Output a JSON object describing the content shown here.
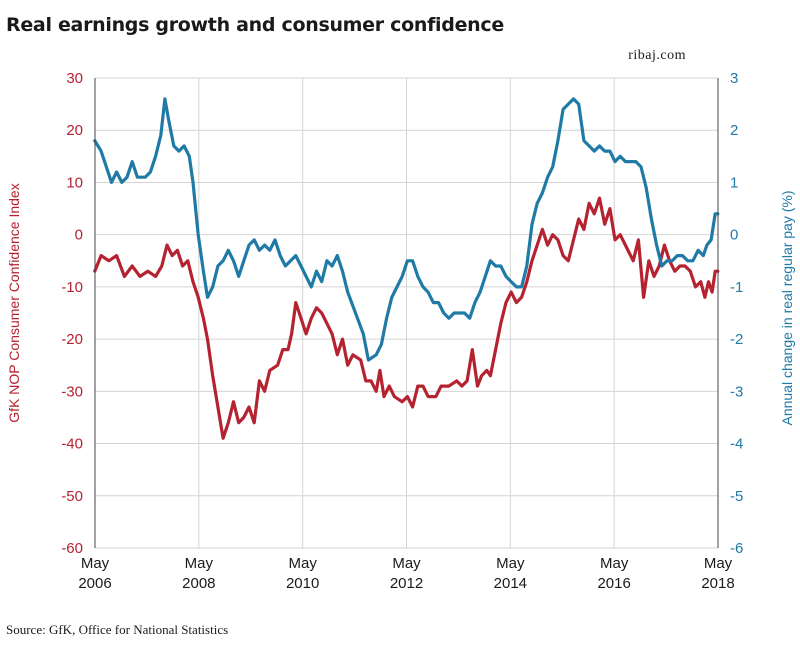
{
  "title": "Real earnings growth and consumer confidence",
  "brand": "ribaj.com",
  "source": "Source: GfK, Office for National Statistics",
  "colors": {
    "left_series": "#b52230",
    "right_series": "#1f7aa6",
    "grid": "#d4d4d4",
    "axis": "#444444"
  },
  "chart_data": {
    "type": "line",
    "grid": true,
    "x_range": [
      2006.333,
      2018.333
    ],
    "x_ticks": [
      {
        "year": 2006.333,
        "label_top": "May",
        "label_bottom": "2006"
      },
      {
        "year": 2008.333,
        "label_top": "May",
        "label_bottom": "2008"
      },
      {
        "year": 2010.333,
        "label_top": "May",
        "label_bottom": "2010"
      },
      {
        "year": 2012.333,
        "label_top": "May",
        "label_bottom": "2012"
      },
      {
        "year": 2014.333,
        "label_top": "May",
        "label_bottom": "2014"
      },
      {
        "year": 2016.333,
        "label_top": "May",
        "label_bottom": "2016"
      },
      {
        "year": 2018.333,
        "label_top": "May",
        "label_bottom": "2018"
      }
    ],
    "y_left": {
      "label": "GfK NOP Consumer Confidence Index",
      "range": [
        -60,
        30
      ],
      "ticks": [
        30,
        20,
        10,
        0,
        -10,
        -20,
        -30,
        -40,
        -50,
        -60
      ]
    },
    "y_right": {
      "label": "Annual change in real regular pay (%)",
      "range": [
        -6,
        3
      ],
      "ticks": [
        3,
        2,
        1,
        0,
        -1,
        -2,
        -3,
        -4,
        -5,
        -6
      ]
    },
    "series": [
      {
        "axis": "left",
        "points": [
          [
            2006.33,
            -7
          ],
          [
            2006.45,
            -4
          ],
          [
            2006.6,
            -5
          ],
          [
            2006.75,
            -4
          ],
          [
            2006.9,
            -8
          ],
          [
            2007.05,
            -6
          ],
          [
            2007.2,
            -8
          ],
          [
            2007.35,
            -7
          ],
          [
            2007.5,
            -8
          ],
          [
            2007.62,
            -6
          ],
          [
            2007.72,
            -2
          ],
          [
            2007.82,
            -4
          ],
          [
            2007.92,
            -3
          ],
          [
            2008.02,
            -6
          ],
          [
            2008.12,
            -5
          ],
          [
            2008.22,
            -9
          ],
          [
            2008.32,
            -12
          ],
          [
            2008.42,
            -16
          ],
          [
            2008.5,
            -20
          ],
          [
            2008.6,
            -27
          ],
          [
            2008.7,
            -33
          ],
          [
            2008.8,
            -39
          ],
          [
            2008.9,
            -36
          ],
          [
            2009.0,
            -32
          ],
          [
            2009.1,
            -36
          ],
          [
            2009.2,
            -35
          ],
          [
            2009.3,
            -33
          ],
          [
            2009.4,
            -36
          ],
          [
            2009.5,
            -28
          ],
          [
            2009.6,
            -30
          ],
          [
            2009.7,
            -26
          ],
          [
            2009.85,
            -25
          ],
          [
            2009.95,
            -22
          ],
          [
            2010.05,
            -22
          ],
          [
            2010.12,
            -19
          ],
          [
            2010.2,
            -13
          ],
          [
            2010.3,
            -16
          ],
          [
            2010.4,
            -19
          ],
          [
            2010.5,
            -16
          ],
          [
            2010.6,
            -14
          ],
          [
            2010.7,
            -15
          ],
          [
            2010.8,
            -17
          ],
          [
            2010.9,
            -19
          ],
          [
            2011.0,
            -23
          ],
          [
            2011.1,
            -20
          ],
          [
            2011.2,
            -25
          ],
          [
            2011.3,
            -23
          ],
          [
            2011.45,
            -24
          ],
          [
            2011.55,
            -28
          ],
          [
            2011.65,
            -28
          ],
          [
            2011.75,
            -30
          ],
          [
            2011.82,
            -26
          ],
          [
            2011.9,
            -31
          ],
          [
            2012.0,
            -29
          ],
          [
            2012.1,
            -31
          ],
          [
            2012.25,
            -32
          ],
          [
            2012.35,
            -31
          ],
          [
            2012.45,
            -33
          ],
          [
            2012.55,
            -29
          ],
          [
            2012.65,
            -29
          ],
          [
            2012.75,
            -31
          ],
          [
            2012.9,
            -31
          ],
          [
            2013.0,
            -29
          ],
          [
            2013.15,
            -29
          ],
          [
            2013.3,
            -28
          ],
          [
            2013.4,
            -29
          ],
          [
            2013.5,
            -28
          ],
          [
            2013.6,
            -22
          ],
          [
            2013.7,
            -29
          ],
          [
            2013.78,
            -27
          ],
          [
            2013.88,
            -26
          ],
          [
            2013.95,
            -27
          ],
          [
            2014.05,
            -22
          ],
          [
            2014.15,
            -17
          ],
          [
            2014.25,
            -13
          ],
          [
            2014.35,
            -11
          ],
          [
            2014.45,
            -13
          ],
          [
            2014.55,
            -12
          ],
          [
            2014.65,
            -9
          ],
          [
            2014.75,
            -5
          ],
          [
            2014.85,
            -2
          ],
          [
            2014.95,
            1
          ],
          [
            2015.05,
            -2
          ],
          [
            2015.15,
            0
          ],
          [
            2015.25,
            -1
          ],
          [
            2015.35,
            -4
          ],
          [
            2015.45,
            -5
          ],
          [
            2015.55,
            -1
          ],
          [
            2015.65,
            3
          ],
          [
            2015.75,
            1
          ],
          [
            2015.85,
            6
          ],
          [
            2015.95,
            4
          ],
          [
            2016.05,
            7
          ],
          [
            2016.15,
            2
          ],
          [
            2016.25,
            5
          ],
          [
            2016.35,
            -1
          ],
          [
            2016.45,
            0
          ],
          [
            2016.55,
            -2
          ],
          [
            2016.7,
            -5
          ],
          [
            2016.8,
            -1
          ],
          [
            2016.9,
            -12
          ],
          [
            2017.0,
            -5
          ],
          [
            2017.1,
            -8
          ],
          [
            2017.2,
            -6
          ],
          [
            2017.3,
            -2
          ],
          [
            2017.4,
            -5
          ],
          [
            2017.5,
            -7
          ],
          [
            2017.6,
            -6
          ],
          [
            2017.7,
            -6
          ],
          [
            2017.8,
            -7
          ],
          [
            2017.9,
            -10
          ],
          [
            2018.0,
            -9
          ],
          [
            2018.08,
            -12
          ],
          [
            2018.15,
            -9
          ],
          [
            2018.22,
            -11
          ],
          [
            2018.28,
            -7
          ],
          [
            2018.33,
            -7
          ]
        ]
      },
      {
        "axis": "right",
        "points": [
          [
            2006.33,
            1.8
          ],
          [
            2006.45,
            1.6
          ],
          [
            2006.55,
            1.3
          ],
          [
            2006.65,
            1.0
          ],
          [
            2006.75,
            1.2
          ],
          [
            2006.85,
            1.0
          ],
          [
            2006.95,
            1.1
          ],
          [
            2007.05,
            1.4
          ],
          [
            2007.15,
            1.1
          ],
          [
            2007.3,
            1.1
          ],
          [
            2007.4,
            1.2
          ],
          [
            2007.5,
            1.5
          ],
          [
            2007.6,
            1.9
          ],
          [
            2007.68,
            2.6
          ],
          [
            2007.75,
            2.2
          ],
          [
            2007.85,
            1.7
          ],
          [
            2007.95,
            1.6
          ],
          [
            2008.05,
            1.7
          ],
          [
            2008.15,
            1.5
          ],
          [
            2008.22,
            1.0
          ],
          [
            2008.32,
            0.0
          ],
          [
            2008.42,
            -0.7
          ],
          [
            2008.5,
            -1.2
          ],
          [
            2008.6,
            -1.0
          ],
          [
            2008.7,
            -0.6
          ],
          [
            2008.8,
            -0.5
          ],
          [
            2008.9,
            -0.3
          ],
          [
            2009.0,
            -0.5
          ],
          [
            2009.1,
            -0.8
          ],
          [
            2009.2,
            -0.5
          ],
          [
            2009.3,
            -0.2
          ],
          [
            2009.4,
            -0.1
          ],
          [
            2009.5,
            -0.3
          ],
          [
            2009.6,
            -0.2
          ],
          [
            2009.7,
            -0.3
          ],
          [
            2009.8,
            -0.1
          ],
          [
            2009.9,
            -0.4
          ],
          [
            2010.0,
            -0.6
          ],
          [
            2010.1,
            -0.5
          ],
          [
            2010.2,
            -0.4
          ],
          [
            2010.3,
            -0.6
          ],
          [
            2010.4,
            -0.8
          ],
          [
            2010.5,
            -1.0
          ],
          [
            2010.6,
            -0.7
          ],
          [
            2010.7,
            -0.9
          ],
          [
            2010.8,
            -0.5
          ],
          [
            2010.9,
            -0.6
          ],
          [
            2011.0,
            -0.4
          ],
          [
            2011.1,
            -0.7
          ],
          [
            2011.2,
            -1.1
          ],
          [
            2011.35,
            -1.5
          ],
          [
            2011.5,
            -1.9
          ],
          [
            2011.6,
            -2.4
          ],
          [
            2011.75,
            -2.3
          ],
          [
            2011.85,
            -2.1
          ],
          [
            2011.95,
            -1.6
          ],
          [
            2012.05,
            -1.2
          ],
          [
            2012.15,
            -1.0
          ],
          [
            2012.25,
            -0.8
          ],
          [
            2012.35,
            -0.5
          ],
          [
            2012.45,
            -0.5
          ],
          [
            2012.55,
            -0.8
          ],
          [
            2012.65,
            -1.0
          ],
          [
            2012.75,
            -1.1
          ],
          [
            2012.85,
            -1.3
          ],
          [
            2012.95,
            -1.3
          ],
          [
            2013.05,
            -1.5
          ],
          [
            2013.15,
            -1.6
          ],
          [
            2013.25,
            -1.5
          ],
          [
            2013.35,
            -1.5
          ],
          [
            2013.45,
            -1.5
          ],
          [
            2013.55,
            -1.6
          ],
          [
            2013.65,
            -1.3
          ],
          [
            2013.75,
            -1.1
          ],
          [
            2013.85,
            -0.8
          ],
          [
            2013.95,
            -0.5
          ],
          [
            2014.05,
            -0.6
          ],
          [
            2014.15,
            -0.6
          ],
          [
            2014.25,
            -0.8
          ],
          [
            2014.35,
            -0.9
          ],
          [
            2014.45,
            -1.0
          ],
          [
            2014.55,
            -1.0
          ],
          [
            2014.65,
            -0.6
          ],
          [
            2014.75,
            0.2
          ],
          [
            2014.85,
            0.6
          ],
          [
            2014.95,
            0.8
          ],
          [
            2015.05,
            1.1
          ],
          [
            2015.15,
            1.3
          ],
          [
            2015.25,
            1.8
          ],
          [
            2015.35,
            2.4
          ],
          [
            2015.45,
            2.5
          ],
          [
            2015.55,
            2.6
          ],
          [
            2015.65,
            2.5
          ],
          [
            2015.75,
            1.8
          ],
          [
            2015.85,
            1.7
          ],
          [
            2015.95,
            1.6
          ],
          [
            2016.05,
            1.7
          ],
          [
            2016.15,
            1.6
          ],
          [
            2016.25,
            1.6
          ],
          [
            2016.35,
            1.4
          ],
          [
            2016.45,
            1.5
          ],
          [
            2016.55,
            1.4
          ],
          [
            2016.65,
            1.4
          ],
          [
            2016.75,
            1.4
          ],
          [
            2016.85,
            1.3
          ],
          [
            2016.95,
            0.9
          ],
          [
            2017.05,
            0.3
          ],
          [
            2017.15,
            -0.2
          ],
          [
            2017.25,
            -0.6
          ],
          [
            2017.35,
            -0.5
          ],
          [
            2017.45,
            -0.5
          ],
          [
            2017.55,
            -0.4
          ],
          [
            2017.65,
            -0.4
          ],
          [
            2017.75,
            -0.5
          ],
          [
            2017.85,
            -0.5
          ],
          [
            2017.95,
            -0.3
          ],
          [
            2018.05,
            -0.4
          ],
          [
            2018.12,
            -0.2
          ],
          [
            2018.2,
            -0.1
          ],
          [
            2018.28,
            0.4
          ],
          [
            2018.33,
            0.4
          ]
        ]
      }
    ]
  }
}
